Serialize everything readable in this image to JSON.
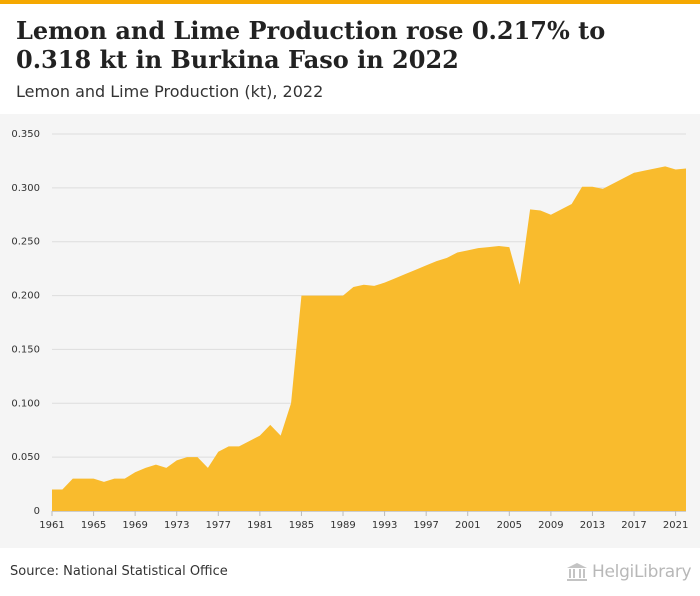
{
  "header": {
    "title": "Lemon and Lime Production rose 0.217% to 0.318 kt in Burkina Faso in 2022",
    "subtitle": "Lemon and Lime Production (kt), 2022"
  },
  "footer": {
    "source": "Source: National Statistical Office",
    "logo_text": "HelgiLibrary"
  },
  "colors": {
    "accent": "#f5a800",
    "area_fill": "#f9bb2d",
    "background": "#f5f5f5"
  },
  "chart_data": {
    "type": "area",
    "title": "Lemon and Lime Production (kt), 2022",
    "xlabel": "",
    "ylabel": "",
    "ylim": [
      0,
      0.35
    ],
    "yticks": [
      "0",
      "0.050",
      "0.100",
      "0.150",
      "0.200",
      "0.250",
      "0.300",
      "0.350"
    ],
    "xticks": [
      "1961",
      "1965",
      "1969",
      "1973",
      "1977",
      "1981",
      "1985",
      "1989",
      "1993",
      "1997",
      "2001",
      "2005",
      "2009",
      "2013",
      "2017",
      "2021"
    ],
    "grid": true,
    "series": [
      {
        "x": [
          1961,
          1962,
          1963,
          1964,
          1965,
          1966,
          1967,
          1968,
          1969,
          1970,
          1971,
          1972,
          1973,
          1974,
          1975,
          1976,
          1977,
          1978,
          1979,
          1980,
          1981,
          1982,
          1983,
          1984,
          1985,
          1986,
          1987,
          1988,
          1989,
          1990,
          1991,
          1992,
          1993,
          1994,
          1995,
          1996,
          1997,
          1998,
          1999,
          2000,
          2001,
          2002,
          2003,
          2004,
          2005,
          2006,
          2007,
          2008,
          2009,
          2010,
          2011,
          2012,
          2013,
          2014,
          2015,
          2016,
          2017,
          2018,
          2019,
          2020,
          2021,
          2022
        ],
        "values": [
          0.02,
          0.02,
          0.03,
          0.03,
          0.03,
          0.027,
          0.03,
          0.03,
          0.036,
          0.04,
          0.043,
          0.04,
          0.047,
          0.05,
          0.05,
          0.04,
          0.055,
          0.06,
          0.06,
          0.065,
          0.07,
          0.08,
          0.07,
          0.1,
          0.2,
          0.2,
          0.2,
          0.2,
          0.2,
          0.208,
          0.21,
          0.209,
          0.212,
          0.216,
          0.22,
          0.224,
          0.228,
          0.232,
          0.235,
          0.24,
          0.242,
          0.244,
          0.245,
          0.246,
          0.245,
          0.21,
          0.28,
          0.279,
          0.275,
          0.28,
          0.285,
          0.301,
          0.301,
          0.299,
          0.304,
          0.309,
          0.314,
          0.316,
          0.318,
          0.32,
          0.317,
          0.318
        ]
      }
    ]
  }
}
